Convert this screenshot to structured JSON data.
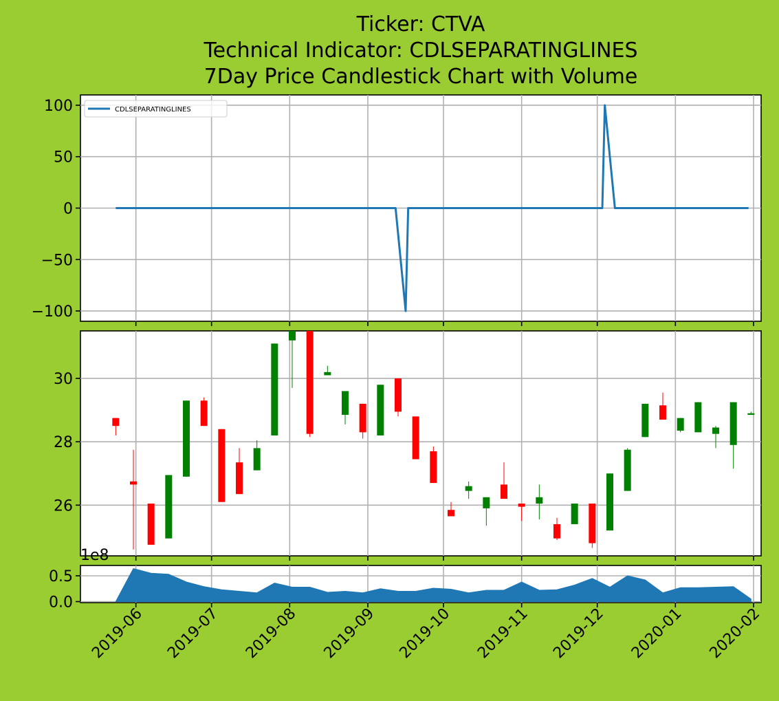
{
  "title_lines": [
    "Ticker: CTVA",
    "Technical Indicator: CDLSEPARATINGLINES",
    "7Day Price Candlestick Chart with Volume"
  ],
  "colors": {
    "background": "#9acd32",
    "line": "#1f77b4",
    "up": "#008000",
    "down": "#ff0000",
    "volume": "#1f77b4"
  },
  "chart_data": [
    {
      "type": "line",
      "name": "indicator",
      "legend": "CDLSEPARATINGLINES",
      "legend_position": "upper-left",
      "x_range": [
        "2019-05-10",
        "2020-02-04"
      ],
      "ylim": [
        -110,
        110
      ],
      "yticks": [
        100,
        50,
        0,
        -50,
        -100
      ],
      "ytick_labels": [
        "100",
        "50",
        "0",
        "−50",
        "−100"
      ],
      "grid": true,
      "points": [
        {
          "x": "2019-05-24",
          "y": 0
        },
        {
          "x": "2019-09-12",
          "y": 0
        },
        {
          "x": "2019-09-16",
          "y": -100
        },
        {
          "x": "2019-09-17",
          "y": 0
        },
        {
          "x": "2019-12-03",
          "y": 0
        },
        {
          "x": "2019-12-04",
          "y": 100
        },
        {
          "x": "2019-12-08",
          "y": 0
        },
        {
          "x": "2020-01-30",
          "y": 0
        }
      ]
    },
    {
      "type": "candlestick",
      "name": "price",
      "x_range": [
        "2019-05-10",
        "2020-02-04"
      ],
      "ylim": [
        24.4,
        31.5
      ],
      "yticks": [
        26,
        28,
        30
      ],
      "ytick_labels": [
        "26",
        "28",
        "30"
      ],
      "grid": true,
      "candles": [
        {
          "date": "2019-05-24",
          "open": 28.75,
          "high": 28.75,
          "low": 28.2,
          "close": 28.5
        },
        {
          "date": "2019-05-31",
          "open": 26.75,
          "high": 27.75,
          "low": 24.6,
          "close": 26.65
        },
        {
          "date": "2019-06-07",
          "open": 26.05,
          "high": 26.05,
          "low": 24.75,
          "close": 24.75
        },
        {
          "date": "2019-06-14",
          "open": 24.95,
          "high": 26.95,
          "low": 24.95,
          "close": 26.95
        },
        {
          "date": "2019-06-21",
          "open": 26.9,
          "high": 29.3,
          "low": 26.9,
          "close": 29.3
        },
        {
          "date": "2019-06-28",
          "open": 29.3,
          "high": 29.4,
          "low": 28.5,
          "close": 28.5
        },
        {
          "date": "2019-07-05",
          "open": 28.4,
          "high": 28.4,
          "low": 26.1,
          "close": 26.1
        },
        {
          "date": "2019-07-12",
          "open": 27.35,
          "high": 27.8,
          "low": 26.35,
          "close": 26.35
        },
        {
          "date": "2019-07-19",
          "open": 27.1,
          "high": 28.05,
          "low": 27.1,
          "close": 27.8
        },
        {
          "date": "2019-07-26",
          "open": 28.2,
          "high": 31.1,
          "low": 28.2,
          "close": 31.1
        },
        {
          "date": "2019-08-02",
          "open": 31.2,
          "high": 31.5,
          "low": 29.7,
          "close": 31.5
        },
        {
          "date": "2019-08-09",
          "open": 31.5,
          "high": 31.5,
          "low": 28.15,
          "close": 28.25
        },
        {
          "date": "2019-08-16",
          "open": 30.1,
          "high": 30.4,
          "low": 30.1,
          "close": 30.2
        },
        {
          "date": "2019-08-23",
          "open": 28.85,
          "high": 29.6,
          "low": 28.55,
          "close": 29.6
        },
        {
          "date": "2019-08-30",
          "open": 29.2,
          "high": 29.2,
          "low": 28.1,
          "close": 28.3
        },
        {
          "date": "2019-09-06",
          "open": 28.2,
          "high": 29.8,
          "low": 28.2,
          "close": 29.8
        },
        {
          "date": "2019-09-13",
          "open": 30.0,
          "high": 30.0,
          "low": 28.8,
          "close": 28.95
        },
        {
          "date": "2019-09-20",
          "open": 28.8,
          "high": 28.8,
          "low": 27.45,
          "close": 27.45
        },
        {
          "date": "2019-09-27",
          "open": 27.7,
          "high": 27.85,
          "low": 26.7,
          "close": 26.7
        },
        {
          "date": "2019-10-04",
          "open": 25.85,
          "high": 26.1,
          "low": 25.65,
          "close": 25.65
        },
        {
          "date": "2019-10-11",
          "open": 26.45,
          "high": 26.75,
          "low": 26.2,
          "close": 26.6
        },
        {
          "date": "2019-10-18",
          "open": 25.9,
          "high": 26.25,
          "low": 25.35,
          "close": 26.25
        },
        {
          "date": "2019-10-25",
          "open": 26.65,
          "high": 27.35,
          "low": 26.2,
          "close": 26.2
        },
        {
          "date": "2019-11-01",
          "open": 26.05,
          "high": 26.05,
          "low": 25.5,
          "close": 25.95
        },
        {
          "date": "2019-11-08",
          "open": 26.05,
          "high": 26.65,
          "low": 25.55,
          "close": 26.25
        },
        {
          "date": "2019-11-15",
          "open": 25.4,
          "high": 25.6,
          "low": 24.9,
          "close": 24.95
        },
        {
          "date": "2019-11-22",
          "open": 25.4,
          "high": 26.05,
          "low": 25.4,
          "close": 26.05
        },
        {
          "date": "2019-11-29",
          "open": 26.05,
          "high": 26.05,
          "low": 24.65,
          "close": 24.8
        },
        {
          "date": "2019-12-06",
          "open": 25.2,
          "high": 27.0,
          "low": 25.2,
          "close": 27.0
        },
        {
          "date": "2019-12-13",
          "open": 26.45,
          "high": 27.8,
          "low": 26.45,
          "close": 27.75
        },
        {
          "date": "2019-12-20",
          "open": 28.15,
          "high": 29.2,
          "low": 28.15,
          "close": 29.2
        },
        {
          "date": "2019-12-27",
          "open": 29.15,
          "high": 29.55,
          "low": 28.7,
          "close": 28.7
        },
        {
          "date": "2020-01-03",
          "open": 28.35,
          "high": 28.75,
          "low": 28.3,
          "close": 28.75
        },
        {
          "date": "2020-01-10",
          "open": 28.3,
          "high": 29.25,
          "low": 28.3,
          "close": 29.25
        },
        {
          "date": "2020-01-17",
          "open": 28.25,
          "high": 28.5,
          "low": 27.8,
          "close": 28.45
        },
        {
          "date": "2020-01-24",
          "open": 27.9,
          "high": 29.25,
          "low": 27.15,
          "close": 29.25
        },
        {
          "date": "2020-01-31",
          "open": 28.85,
          "high": 28.95,
          "low": 28.85,
          "close": 28.9
        }
      ]
    },
    {
      "type": "area",
      "name": "volume",
      "x_range": [
        "2019-05-10",
        "2020-02-04"
      ],
      "ylim": [
        -0.02,
        0.7
      ],
      "yticks": [
        0.0,
        0.5
      ],
      "ytick_labels": [
        "0.0",
        "0.5"
      ],
      "scale_label": "1e8",
      "grid": true,
      "points": [
        {
          "x": "2019-05-24",
          "y": 0.0
        },
        {
          "x": "2019-05-31",
          "y": 0.64
        },
        {
          "x": "2019-06-07",
          "y": 0.55
        },
        {
          "x": "2019-06-14",
          "y": 0.53
        },
        {
          "x": "2019-06-21",
          "y": 0.38
        },
        {
          "x": "2019-06-28",
          "y": 0.29
        },
        {
          "x": "2019-07-05",
          "y": 0.23
        },
        {
          "x": "2019-07-12",
          "y": 0.2
        },
        {
          "x": "2019-07-19",
          "y": 0.17
        },
        {
          "x": "2019-07-26",
          "y": 0.36
        },
        {
          "x": "2019-08-02",
          "y": 0.28
        },
        {
          "x": "2019-08-09",
          "y": 0.28
        },
        {
          "x": "2019-08-16",
          "y": 0.18
        },
        {
          "x": "2019-08-23",
          "y": 0.2
        },
        {
          "x": "2019-08-30",
          "y": 0.17
        },
        {
          "x": "2019-09-06",
          "y": 0.25
        },
        {
          "x": "2019-09-13",
          "y": 0.2
        },
        {
          "x": "2019-09-20",
          "y": 0.2
        },
        {
          "x": "2019-09-27",
          "y": 0.26
        },
        {
          "x": "2019-10-04",
          "y": 0.24
        },
        {
          "x": "2019-10-11",
          "y": 0.17
        },
        {
          "x": "2019-10-18",
          "y": 0.22
        },
        {
          "x": "2019-10-25",
          "y": 0.22
        },
        {
          "x": "2019-11-01",
          "y": 0.38
        },
        {
          "x": "2019-11-08",
          "y": 0.22
        },
        {
          "x": "2019-11-15",
          "y": 0.23
        },
        {
          "x": "2019-11-22",
          "y": 0.32
        },
        {
          "x": "2019-11-29",
          "y": 0.45
        },
        {
          "x": "2019-12-06",
          "y": 0.28
        },
        {
          "x": "2019-12-13",
          "y": 0.5
        },
        {
          "x": "2019-12-20",
          "y": 0.42
        },
        {
          "x": "2019-12-27",
          "y": 0.17
        },
        {
          "x": "2020-01-03",
          "y": 0.27
        },
        {
          "x": "2020-01-10",
          "y": 0.27
        },
        {
          "x": "2020-01-17",
          "y": 0.28
        },
        {
          "x": "2020-01-24",
          "y": 0.29
        },
        {
          "x": "2020-01-31",
          "y": 0.05
        }
      ]
    }
  ],
  "x_axis": {
    "ticks": [
      "2019-06-01",
      "2019-07-01",
      "2019-08-01",
      "2019-09-01",
      "2019-10-01",
      "2019-11-01",
      "2019-12-01",
      "2020-01-01",
      "2020-02-01"
    ],
    "tick_labels": [
      "2019-06",
      "2019-07",
      "2019-08",
      "2019-09",
      "2019-10",
      "2019-11",
      "2019-12",
      "2020-01",
      "2020-02"
    ],
    "label_rotation_deg": 45
  }
}
